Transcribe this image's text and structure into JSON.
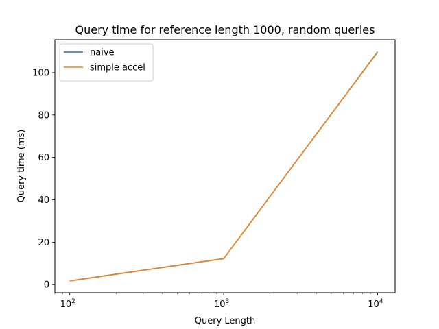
{
  "chart_data": {
    "type": "line",
    "title": "Query time for reference length 1000, random queries",
    "xlabel": "Query Length",
    "ylabel": "Query time (ms)",
    "xscale": "log",
    "xlim": [
      80,
      13000
    ],
    "ylim": [
      -3.8,
      115.5
    ],
    "grid": false,
    "legend_position": "top-left",
    "x": [
      100,
      1000,
      10000
    ],
    "x_ticks": [
      {
        "value": 100,
        "base": "10",
        "exp": "2"
      },
      {
        "value": 1000,
        "base": "10",
        "exp": "3"
      },
      {
        "value": 10000,
        "base": "10",
        "exp": "4"
      }
    ],
    "y_ticks": [
      0,
      20,
      40,
      60,
      80,
      100
    ],
    "series": [
      {
        "name": "naive",
        "color": "#1f77b4",
        "values": [
          1.8,
          12.3,
          109.8
        ]
      },
      {
        "name": "simple accel",
        "color": "#ff7f0e",
        "values": [
          1.7,
          12.2,
          109.6
        ]
      }
    ]
  }
}
